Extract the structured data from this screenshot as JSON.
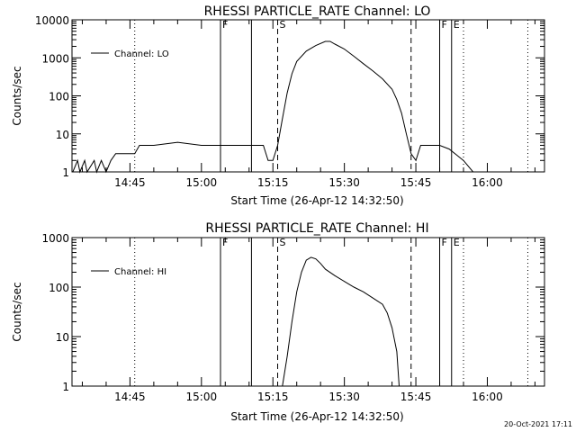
{
  "chart_data": [
    {
      "type": "line",
      "title": "RHESSI PARTICLE_RATE Channel: LO",
      "xlabel": "Start Time (26-Apr-12 14:32:50)",
      "ylabel": "Counts/sec",
      "y_scale": "log",
      "ylim": [
        1,
        10000
      ],
      "y_ticks": [
        1,
        10,
        100,
        1000,
        10000
      ],
      "y_tick_labels": [
        "1",
        "10",
        "100",
        "1000",
        "10000"
      ],
      "xlim": [
        "14:32:50",
        "16:12:00"
      ],
      "x_ticks": [
        "14:45",
        "15:00",
        "15:15",
        "15:30",
        "15:45",
        "16:00"
      ],
      "legend": {
        "placement": "top-left",
        "entries": [
          "Channel: LO"
        ]
      },
      "series": [
        {
          "name": "Channel: LO",
          "x": [
            "14:33:00",
            "14:34:00",
            "14:34:30",
            "14:35:30",
            "14:36:00",
            "14:37:30",
            "14:38:00",
            "14:39:00",
            "14:40:00",
            "14:41:00",
            "14:42:00",
            "14:46:00",
            "14:47:00",
            "14:50:00",
            "14:55:00",
            "15:00:00",
            "15:05:00",
            "15:10:00",
            "15:13:00",
            "15:14:00",
            "15:15:00",
            "15:16:00",
            "15:17:00",
            "15:18:00",
            "15:19:00",
            "15:20:00",
            "15:22:00",
            "15:24:00",
            "15:26:00",
            "15:27:00",
            "15:28:00",
            "15:30:00",
            "15:32:00",
            "15:34:00",
            "15:36:00",
            "15:38:00",
            "15:40:00",
            "15:41:00",
            "15:42:00",
            "15:43:00",
            "15:44:00",
            "15:45:00",
            "15:46:00",
            "15:47:00",
            "15:50:00",
            "15:52:00",
            "15:55:00",
            "15:57:00",
            "16:00:00"
          ],
          "y": [
            1,
            2,
            1,
            2,
            1,
            2,
            1,
            2,
            1,
            2,
            3,
            3,
            5,
            5,
            6,
            5,
            5,
            5,
            5,
            2,
            2,
            5,
            25,
            120,
            380,
            800,
            1500,
            2100,
            2700,
            2700,
            2300,
            1700,
            1100,
            700,
            450,
            280,
            150,
            80,
            35,
            10,
            3,
            2,
            5,
            5,
            5,
            4,
            2,
            1,
            1
          ]
        }
      ],
      "markers": [
        {
          "label": "F",
          "at": "15:04:00",
          "style": "solid"
        },
        {
          "label": "",
          "at": "15:10:30",
          "style": "solid"
        },
        {
          "label": "S",
          "at": "15:16:00",
          "style": "dashed"
        },
        {
          "label": "",
          "at": "15:44:00",
          "style": "dashed"
        },
        {
          "label": "F",
          "at": "15:50:00",
          "style": "solid"
        },
        {
          "label": "E",
          "at": "15:52:30",
          "style": "solid"
        },
        {
          "label": "",
          "at": "14:46:00",
          "style": "dotted"
        },
        {
          "label": "",
          "at": "15:55:00",
          "style": "dotted"
        },
        {
          "label": "",
          "at": "16:08:30",
          "style": "dotted"
        }
      ]
    },
    {
      "type": "line",
      "title": "RHESSI PARTICLE_RATE Channel: HI",
      "xlabel": "Start Time (26-Apr-12 14:32:50)",
      "ylabel": "Counts/sec",
      "y_scale": "log",
      "ylim": [
        1,
        1000
      ],
      "y_ticks": [
        1,
        10,
        100,
        1000
      ],
      "y_tick_labels": [
        "1",
        "10",
        "100",
        "1000"
      ],
      "xlim": [
        "14:32:50",
        "16:12:00"
      ],
      "x_ticks": [
        "14:45",
        "15:00",
        "15:15",
        "15:30",
        "15:45",
        "16:00"
      ],
      "legend": {
        "placement": "top-left",
        "entries": [
          "Channel: HI"
        ]
      },
      "series": [
        {
          "name": "Channel: HI",
          "x": [
            "15:17:00",
            "15:18:00",
            "15:19:00",
            "15:20:00",
            "15:21:00",
            "15:22:00",
            "15:23:00",
            "15:24:00",
            "15:25:00",
            "15:26:00",
            "15:28:00",
            "15:30:00",
            "15:32:00",
            "15:34:00",
            "15:36:00",
            "15:38:00",
            "15:39:00",
            "15:40:00",
            "15:41:00",
            "15:41:30"
          ],
          "y": [
            1,
            4,
            20,
            80,
            200,
            350,
            400,
            370,
            300,
            230,
            170,
            130,
            100,
            80,
            60,
            45,
            30,
            15,
            5,
            1
          ]
        }
      ],
      "markers": [
        {
          "label": "F",
          "at": "15:04:00",
          "style": "solid"
        },
        {
          "label": "",
          "at": "15:10:30",
          "style": "solid"
        },
        {
          "label": "S",
          "at": "15:16:00",
          "style": "dashed"
        },
        {
          "label": "",
          "at": "15:44:00",
          "style": "dashed"
        },
        {
          "label": "F",
          "at": "15:50:00",
          "style": "solid"
        },
        {
          "label": "E",
          "at": "15:52:30",
          "style": "solid"
        },
        {
          "label": "",
          "at": "14:46:00",
          "style": "dotted"
        },
        {
          "label": "",
          "at": "15:55:00",
          "style": "dotted"
        },
        {
          "label": "",
          "at": "16:08:30",
          "style": "dotted"
        }
      ]
    }
  ],
  "timestamp": "20-Oct-2021 17:11"
}
